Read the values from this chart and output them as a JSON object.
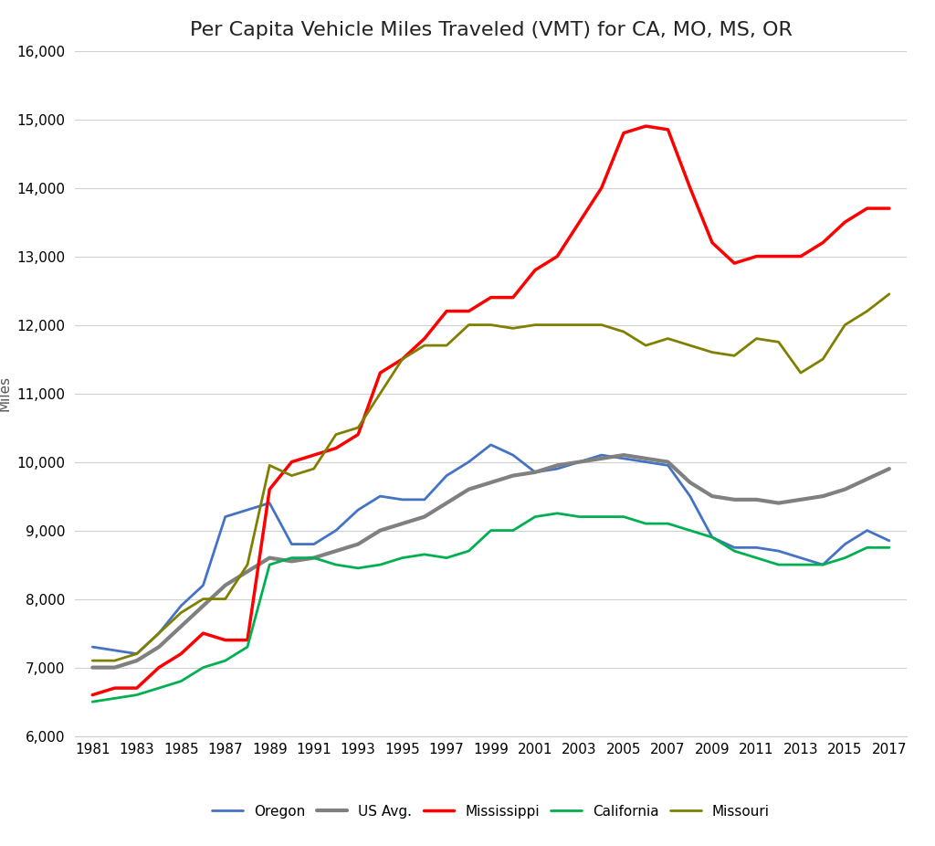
{
  "title": "Per Capita Vehicle Miles Traveled (VMT) for CA, MO, MS, OR",
  "ylabel": "Miles",
  "years": [
    1981,
    1982,
    1983,
    1984,
    1985,
    1986,
    1987,
    1988,
    1989,
    1990,
    1991,
    1992,
    1993,
    1994,
    1995,
    1996,
    1997,
    1998,
    1999,
    2000,
    2001,
    2002,
    2003,
    2004,
    2005,
    2006,
    2007,
    2008,
    2009,
    2010,
    2011,
    2012,
    2013,
    2014,
    2015,
    2016,
    2017
  ],
  "Oregon": [
    7300,
    7250,
    7200,
    7500,
    7900,
    8200,
    9200,
    9300,
    9400,
    8800,
    8800,
    9000,
    9300,
    9500,
    9450,
    9450,
    9800,
    10000,
    10250,
    10100,
    9850,
    9900,
    10000,
    10100,
    10050,
    10000,
    9950,
    9500,
    8900,
    8750,
    8750,
    8700,
    8600,
    8500,
    8800,
    9000,
    8850
  ],
  "US_Avg": [
    7000,
    7000,
    7100,
    7300,
    7600,
    7900,
    8200,
    8400,
    8600,
    8550,
    8600,
    8700,
    8800,
    9000,
    9100,
    9200,
    9400,
    9600,
    9700,
    9800,
    9850,
    9950,
    10000,
    10050,
    10100,
    10050,
    10000,
    9700,
    9500,
    9450,
    9450,
    9400,
    9450,
    9500,
    9600,
    9750,
    9900
  ],
  "Mississippi": [
    6600,
    6700,
    6700,
    7000,
    7200,
    7500,
    7400,
    7400,
    9600,
    10000,
    10100,
    10200,
    10400,
    11300,
    11500,
    11800,
    12200,
    12200,
    12400,
    12400,
    12800,
    13000,
    13500,
    14000,
    14800,
    14900,
    14850,
    14000,
    13200,
    12900,
    13000,
    13000,
    13000,
    13200,
    13500,
    13700,
    13700
  ],
  "California": [
    6500,
    6550,
    6600,
    6700,
    6800,
    7000,
    7100,
    7300,
    8500,
    8600,
    8600,
    8500,
    8450,
    8500,
    8600,
    8650,
    8600,
    8700,
    9000,
    9000,
    9200,
    9250,
    9200,
    9200,
    9200,
    9100,
    9100,
    9000,
    8900,
    8700,
    8600,
    8500,
    8500,
    8500,
    8600,
    8750,
    8750
  ],
  "Missouri": [
    7100,
    7100,
    7200,
    7500,
    7800,
    8000,
    8000,
    8500,
    9950,
    9800,
    9900,
    10400,
    10500,
    11000,
    11500,
    11700,
    11700,
    12000,
    12000,
    11950,
    12000,
    12000,
    12000,
    12000,
    11900,
    11700,
    11800,
    11700,
    11600,
    11550,
    11800,
    11750,
    11300,
    11500,
    12000,
    12200,
    12450
  ],
  "line_colors": {
    "Oregon": "#4472c4",
    "US_Avg": "#808080",
    "Mississippi": "#ff0000",
    "California": "#00b050",
    "Missouri": "#808000"
  },
  "line_widths": {
    "Oregon": 2.0,
    "US_Avg": 3.0,
    "Mississippi": 2.5,
    "California": 2.0,
    "Missouri": 2.0
  },
  "legend_labels": {
    "Oregon": "Oregon",
    "US_Avg": "US Avg.",
    "Mississippi": "Mississippi",
    "California": "California",
    "Missouri": "Missouri"
  },
  "ylim": [
    6000,
    16000
  ],
  "yticks": [
    6000,
    7000,
    8000,
    9000,
    10000,
    11000,
    12000,
    13000,
    14000,
    15000,
    16000
  ],
  "background_color": "#ffffff",
  "grid_color": "#d0d0d0",
  "title_fontsize": 16,
  "tick_fontsize": 11,
  "ylabel_fontsize": 11,
  "legend_fontsize": 11
}
